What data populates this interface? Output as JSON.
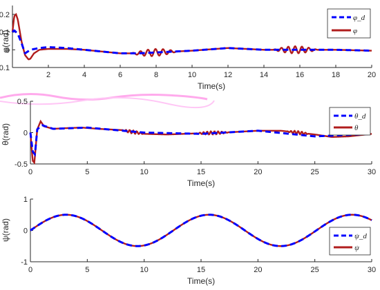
{
  "chart_data": [
    {
      "type": "line",
      "xlabel": "Time(s)",
      "ylabel": "φ(rad)",
      "xlim": [
        0,
        20
      ],
      "ylim": [
        -0.1,
        0.25
      ],
      "xticks": [
        "2",
        "4",
        "6",
        "8",
        "10",
        "12",
        "14",
        "16",
        "18",
        "20"
      ],
      "yticks": [
        "-0.1",
        "0",
        "0.1",
        "0.2"
      ],
      "legend_position": "top-right",
      "series": [
        {
          "name": "φ_d",
          "style": "dashed",
          "color": "#0000ff",
          "x": [
            0,
            0.1,
            0.3,
            0.5,
            0.7,
            1.0,
            1.5,
            2,
            3,
            4,
            6,
            7,
            8,
            9,
            10,
            12,
            14,
            16,
            18,
            20
          ],
          "y": [
            0.1,
            0.11,
            0.09,
            0.04,
            -0.02,
            0.0,
            0.01,
            0.015,
            0.01,
            0.0,
            -0.02,
            -0.02,
            -0.015,
            -0.01,
            -0.005,
            0.01,
            0.0,
            0.0,
            0.0,
            -0.005
          ]
        },
        {
          "name": "φ",
          "style": "solid",
          "color": "#b01c1c",
          "x": [
            0,
            0.1,
            0.2,
            0.3,
            0.5,
            0.7,
            0.9,
            1.0,
            1.2,
            1.5,
            2,
            3,
            4,
            5,
            6,
            7,
            8,
            9,
            10,
            12,
            14,
            16,
            18,
            20
          ],
          "y": [
            0.1,
            0.19,
            0.2,
            0.17,
            0.05,
            -0.03,
            -0.055,
            -0.05,
            -0.02,
            0.0,
            0.005,
            0.005,
            0.0,
            -0.01,
            -0.02,
            -0.02,
            -0.015,
            -0.01,
            -0.005,
            0.01,
            0.0,
            0.0,
            0.0,
            -0.005
          ]
        }
      ],
      "oscillations": [
        {
          "x_start": 6.6,
          "x_end": 9.2,
          "amplitude": 0.02,
          "period": 0.42
        },
        {
          "x_start": 14.5,
          "x_end": 17.0,
          "amplitude": 0.02,
          "period": 0.38
        }
      ]
    },
    {
      "type": "line",
      "xlabel": "Time(s)",
      "ylabel": "θ(rad)",
      "xlim": [
        0,
        30
      ],
      "ylim": [
        -0.5,
        0.5
      ],
      "xticks": [
        "0",
        "5",
        "10",
        "15",
        "20",
        "25",
        "30"
      ],
      "yticks": [
        "-0.5",
        "0",
        "0.5"
      ],
      "legend_position": "top-right",
      "series": [
        {
          "name": "θ_d",
          "style": "dashed",
          "color": "#0000ff",
          "x": [
            0,
            0.2,
            0.4,
            0.6,
            1.0,
            2,
            5,
            10,
            15,
            20,
            25,
            30
          ],
          "y": [
            0.0,
            -0.3,
            -0.35,
            0.05,
            0.12,
            0.06,
            0.08,
            0.0,
            -0.02,
            0.03,
            -0.06,
            -0.02
          ]
        },
        {
          "name": "θ",
          "style": "solid",
          "color": "#b01c1c",
          "x": [
            0,
            0.2,
            0.35,
            0.6,
            0.9,
            1.2,
            2,
            3,
            4.5,
            6,
            8,
            10,
            12,
            15,
            17,
            20,
            22,
            25,
            26.5,
            28,
            30
          ],
          "y": [
            0.0,
            -0.45,
            -0.48,
            0.05,
            0.18,
            0.1,
            0.06,
            0.07,
            0.08,
            0.06,
            0.04,
            -0.02,
            -0.03,
            -0.01,
            0.0,
            0.03,
            0.03,
            -0.03,
            -0.07,
            -0.06,
            -0.02
          ]
        }
      ],
      "oscillations": [
        {
          "x_start": 8.0,
          "x_end": 10.0,
          "amplitude": 0.025,
          "period": 0.32
        },
        {
          "x_start": 14.5,
          "x_end": 17.5,
          "amplitude": 0.025,
          "period": 0.32
        },
        {
          "x_start": 22.5,
          "x_end": 24.5,
          "amplitude": 0.025,
          "period": 0.32
        }
      ]
    },
    {
      "type": "line",
      "xlabel": "Time(s)",
      "ylabel": "ψ(rad)",
      "xlim": [
        0,
        30
      ],
      "ylim": [
        -1,
        1
      ],
      "xticks": [
        "0",
        "5",
        "10",
        "15",
        "20",
        "25",
        "30"
      ],
      "yticks": [
        "-1",
        "0",
        "1"
      ],
      "legend_position": "bottom-right",
      "series": [
        {
          "name": "ψ_d",
          "style": "dashed",
          "color": "#0000ff",
          "function": "0.5*sin(t/2)"
        },
        {
          "name": "ψ",
          "style": "solid",
          "color": "#b01c1c",
          "function": "0.5*sin(t/2)"
        }
      ]
    }
  ]
}
